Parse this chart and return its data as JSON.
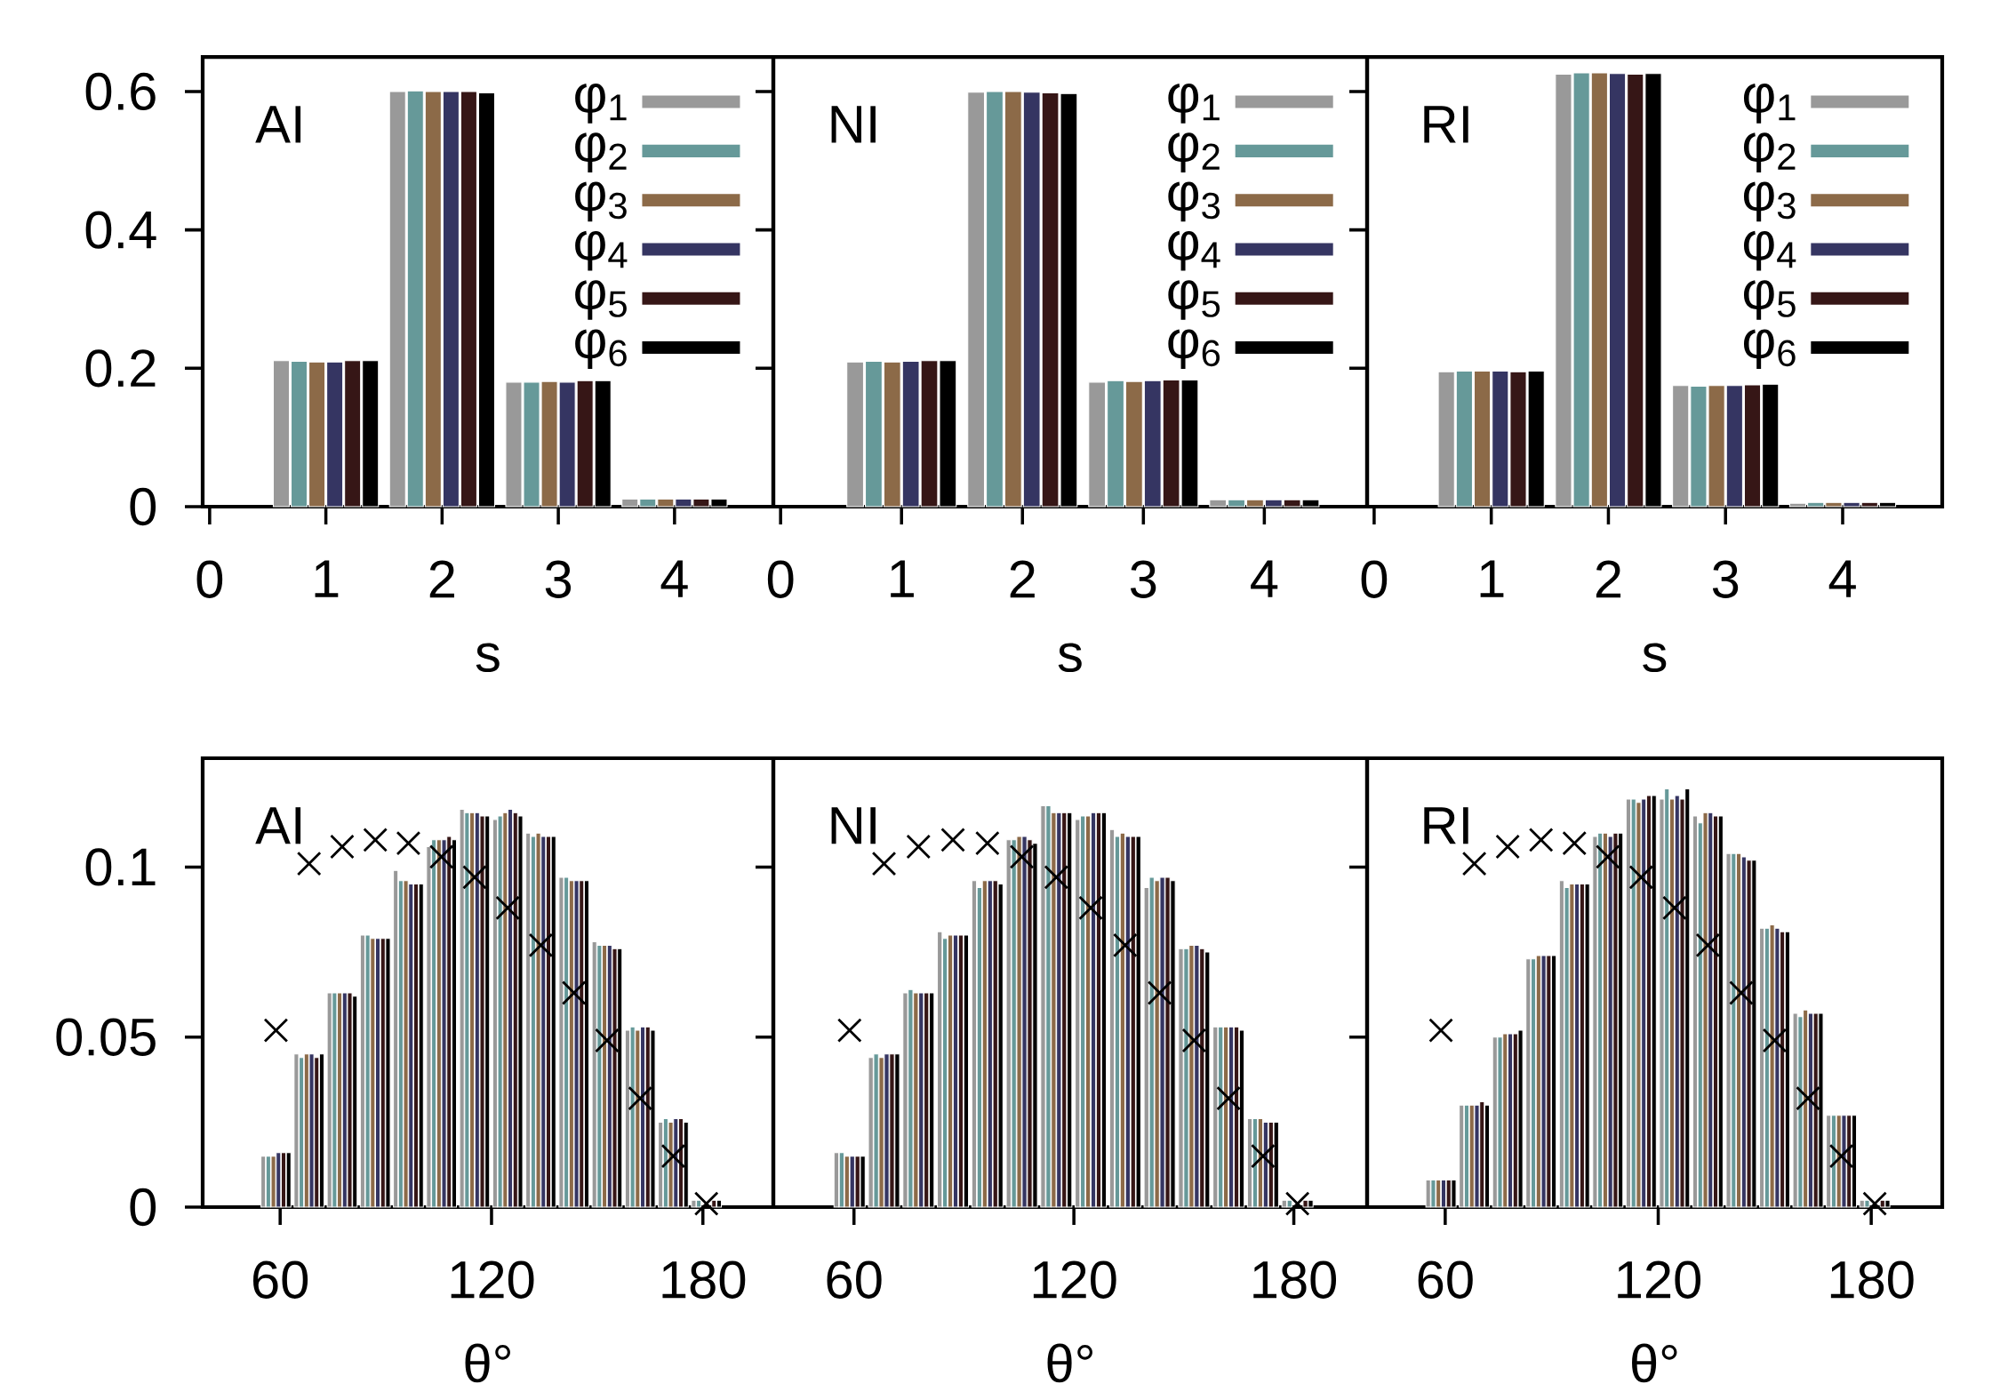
{
  "chart_data": [
    {
      "type": "bar",
      "x": [
        1,
        2,
        3,
        4
      ],
      "xlim": [
        -0.06,
        4.85
      ],
      "xticks": [
        0,
        1,
        2,
        3,
        4
      ],
      "ylim": [
        0,
        0.65
      ],
      "yticks": [
        0,
        0.2,
        0.4,
        0.6
      ],
      "xlabel": "s",
      "annotations": [
        "AI"
      ],
      "legend": "top right",
      "series": [
        {
          "name": "φ$_{1}$",
          "color": "#999999",
          "values": [
            0.211,
            0.6,
            0.18,
            0.011
          ]
        },
        {
          "name": "φ$_{2}$",
          "color": "#669999",
          "values": [
            0.21,
            0.601,
            0.18,
            0.011
          ]
        },
        {
          "name": "φ$_{3}$",
          "color": "#8c6a48",
          "values": [
            0.209,
            0.6,
            0.181,
            0.011
          ]
        },
        {
          "name": "φ$_{4}$",
          "color": "#353562",
          "values": [
            0.209,
            0.6,
            0.18,
            0.011
          ]
        },
        {
          "name": "φ$_{5}$",
          "color": "#361616",
          "values": [
            0.211,
            0.6,
            0.182,
            0.011
          ]
        },
        {
          "name": "φ$_{6}$",
          "color": "#000000",
          "values": [
            0.211,
            0.598,
            0.182,
            0.011
          ]
        }
      ]
    },
    {
      "type": "bar",
      "x": [
        1,
        2,
        3,
        4
      ],
      "xlim": [
        -0.06,
        4.85
      ],
      "xticks": [
        0,
        1,
        2,
        3,
        4
      ],
      "ylim": [
        0,
        0.65
      ],
      "yticks": [
        0,
        0.2,
        0.4,
        0.6
      ],
      "xlabel": "s",
      "annotations": [
        "NI"
      ],
      "legend": "top right",
      "tick_labels": "x",
      "series": [
        {
          "name": "φ$_{1}$",
          "color": "#999999",
          "values": [
            0.209,
            0.599,
            0.18,
            0.01
          ]
        },
        {
          "name": "φ$_{2}$",
          "color": "#669999",
          "values": [
            0.21,
            0.6,
            0.182,
            0.01
          ]
        },
        {
          "name": "φ$_{3}$",
          "color": "#8c6a48",
          "values": [
            0.209,
            0.6,
            0.181,
            0.01
          ]
        },
        {
          "name": "φ$_{4}$",
          "color": "#353562",
          "values": [
            0.21,
            0.599,
            0.182,
            0.01
          ]
        },
        {
          "name": "φ$_{5}$",
          "color": "#361616",
          "values": [
            0.211,
            0.598,
            0.183,
            0.01
          ]
        },
        {
          "name": "φ$_{6}$",
          "color": "#000000",
          "values": [
            0.211,
            0.597,
            0.183,
            0.01
          ]
        }
      ]
    },
    {
      "type": "bar",
      "x": [
        1,
        2,
        3,
        4
      ],
      "xlim": [
        -0.06,
        4.85
      ],
      "xticks": [
        0,
        1,
        2,
        3,
        4
      ],
      "ylim": [
        0,
        0.65
      ],
      "yticks": [
        0,
        0.2,
        0.4,
        0.6
      ],
      "xlabel": "s",
      "annotations": [
        "RI"
      ],
      "legend": "top right",
      "tick_labels": "x",
      "series": [
        {
          "name": "φ$_{1}$",
          "color": "#999999",
          "values": [
            0.195,
            0.625,
            0.175,
            0.005
          ]
        },
        {
          "name": "φ$_{2}$",
          "color": "#669999",
          "values": [
            0.196,
            0.627,
            0.174,
            0.006
          ]
        },
        {
          "name": "φ$_{3}$",
          "color": "#8c6a48",
          "values": [
            0.196,
            0.627,
            0.175,
            0.006
          ]
        },
        {
          "name": "φ$_{4}$",
          "color": "#353562",
          "values": [
            0.196,
            0.626,
            0.175,
            0.006
          ]
        },
        {
          "name": "φ$_{5}$",
          "color": "#361616",
          "values": [
            0.195,
            0.625,
            0.176,
            0.006
          ]
        },
        {
          "name": "φ$_{6}$",
          "color": "#000000",
          "values": [
            0.196,
            0.626,
            0.177,
            0.006
          ]
        }
      ]
    },
    {
      "type": "bar",
      "x": [
        58.8,
        68.2,
        77.6,
        87.0,
        96.4,
        105.8,
        115.2,
        124.6,
        134.0,
        143.4,
        152.8,
        162.2,
        171.6,
        181.0
      ],
      "xlim": [
        38,
        200
      ],
      "xticks": [
        60,
        120,
        180
      ],
      "ylim": [
        0,
        0.132
      ],
      "yticks": [
        0,
        0.05,
        0.1
      ],
      "xlabel": "θ°",
      "annotations": [
        "AI"
      ],
      "series": [
        {
          "color": "#999999",
          "values": [
            0.015,
            0.045,
            0.063,
            0.08,
            0.099,
            0.106,
            0.117,
            0.114,
            0.11,
            0.097,
            0.078,
            0.052,
            0.025,
            0.002
          ]
        },
        {
          "color": "#669999",
          "values": [
            0.015,
            0.044,
            0.063,
            0.08,
            0.096,
            0.108,
            0.116,
            0.115,
            0.109,
            0.097,
            0.077,
            0.053,
            0.026,
            0.002
          ]
        },
        {
          "color": "#8c6a48",
          "values": [
            0.015,
            0.045,
            0.063,
            0.079,
            0.096,
            0.108,
            0.116,
            0.116,
            0.11,
            0.096,
            0.077,
            0.052,
            0.025,
            null
          ]
        },
        {
          "color": "#353562",
          "values": [
            0.016,
            0.045,
            0.063,
            0.079,
            0.095,
            0.108,
            0.116,
            0.117,
            0.109,
            0.096,
            0.077,
            0.053,
            0.026,
            null
          ]
        },
        {
          "color": "#361616",
          "values": [
            0.016,
            0.044,
            0.063,
            0.079,
            0.095,
            0.109,
            0.115,
            0.116,
            0.109,
            0.096,
            0.076,
            0.053,
            0.026,
            0.002
          ]
        },
        {
          "color": "#000000",
          "values": [
            0.016,
            0.045,
            0.062,
            0.079,
            0.095,
            0.108,
            0.115,
            0.115,
            0.109,
            0.096,
            0.076,
            0.052,
            0.025,
            0.002
          ]
        },
        {
          "type": "scatter",
          "marker": "cross",
          "color": "#000000",
          "x": [
            58.8,
            68.2,
            77.6,
            87.0,
            96.4,
            105.8,
            115.2,
            124.6,
            134.0,
            143.4,
            152.8,
            162.2,
            171.6,
            181.0
          ],
          "values": [
            0.052,
            0.101,
            0.106,
            0.108,
            0.107,
            0.103,
            0.097,
            0.088,
            0.077,
            0.063,
            0.049,
            0.032,
            0.015,
            0.001
          ]
        }
      ]
    },
    {
      "type": "bar",
      "x": [
        58.8,
        68.2,
        77.6,
        87.0,
        96.4,
        105.8,
        115.2,
        124.6,
        134.0,
        143.4,
        152.8,
        162.2,
        171.6,
        181.0
      ],
      "xlim": [
        38,
        200
      ],
      "xticks": [
        60,
        120,
        180
      ],
      "ylim": [
        0,
        0.132
      ],
      "yticks": [
        0,
        0.05,
        0.1
      ],
      "xlabel": "θ°",
      "annotations": [
        "NI"
      ],
      "tick_labels": "x",
      "series": [
        {
          "color": "#999999",
          "values": [
            0.016,
            0.044,
            0.063,
            0.081,
            0.096,
            0.108,
            0.118,
            0.114,
            0.111,
            0.094,
            0.076,
            0.053,
            0.026,
            0.002
          ]
        },
        {
          "color": "#669999",
          "values": [
            0.016,
            0.045,
            0.064,
            0.079,
            0.094,
            0.108,
            0.118,
            0.115,
            0.109,
            0.097,
            0.076,
            0.053,
            0.026,
            0.002
          ]
        },
        {
          "color": "#8c6a48",
          "values": [
            0.015,
            0.044,
            0.063,
            0.08,
            0.096,
            0.109,
            0.116,
            0.115,
            0.11,
            0.096,
            0.077,
            0.053,
            0.026,
            null
          ]
        },
        {
          "color": "#353562",
          "values": [
            0.015,
            0.045,
            0.063,
            0.08,
            0.096,
            0.109,
            0.116,
            0.116,
            0.109,
            0.097,
            0.077,
            0.053,
            0.025,
            null
          ]
        },
        {
          "color": "#361616",
          "values": [
            0.015,
            0.045,
            0.063,
            0.08,
            0.096,
            0.108,
            0.116,
            0.116,
            0.109,
            0.097,
            0.076,
            0.053,
            0.025,
            0.002
          ]
        },
        {
          "color": "#000000",
          "values": [
            0.015,
            0.045,
            0.063,
            0.08,
            0.095,
            0.107,
            0.116,
            0.116,
            0.109,
            0.096,
            0.075,
            0.052,
            0.025,
            0.002
          ]
        },
        {
          "type": "scatter",
          "marker": "cross",
          "color": "#000000",
          "x": [
            58.8,
            68.2,
            77.6,
            87.0,
            96.4,
            105.8,
            115.2,
            124.6,
            134.0,
            143.4,
            152.8,
            162.2,
            171.6,
            181.0
          ],
          "values": [
            0.052,
            0.101,
            0.106,
            0.108,
            0.107,
            0.103,
            0.097,
            0.088,
            0.077,
            0.063,
            0.049,
            0.032,
            0.015,
            0.001
          ]
        }
      ]
    },
    {
      "type": "bar",
      "x": [
        58.8,
        68.2,
        77.6,
        87.0,
        96.4,
        105.8,
        115.2,
        124.6,
        134.0,
        143.4,
        152.8,
        162.2,
        171.6,
        181.0
      ],
      "xlim": [
        38,
        200
      ],
      "xticks": [
        60,
        120,
        180
      ],
      "ylim": [
        0,
        0.132
      ],
      "yticks": [
        0,
        0.05,
        0.1
      ],
      "xlabel": "θ°",
      "annotations": [
        "RI"
      ],
      "tick_labels": "x",
      "series": [
        {
          "color": "#999999",
          "values": [
            0.008,
            0.03,
            0.05,
            0.073,
            0.096,
            0.109,
            0.12,
            0.12,
            0.115,
            0.104,
            0.082,
            0.057,
            0.027,
            0.002
          ]
        },
        {
          "color": "#669999",
          "values": [
            0.008,
            0.03,
            0.05,
            0.073,
            0.094,
            0.11,
            0.12,
            0.123,
            0.113,
            0.104,
            0.082,
            0.056,
            0.027,
            0.002
          ]
        },
        {
          "color": "#8c6a48",
          "values": [
            0.008,
            0.03,
            0.051,
            0.074,
            0.095,
            0.11,
            0.119,
            0.12,
            0.116,
            0.104,
            0.083,
            0.058,
            0.027,
            null
          ]
        },
        {
          "color": "#353562",
          "values": [
            0.008,
            0.03,
            0.051,
            0.074,
            0.095,
            0.109,
            0.12,
            0.121,
            0.116,
            0.103,
            0.082,
            0.057,
            0.027,
            null
          ]
        },
        {
          "color": "#361616",
          "values": [
            0.008,
            0.031,
            0.051,
            0.074,
            0.095,
            0.11,
            0.121,
            0.12,
            0.115,
            0.102,
            0.081,
            0.057,
            0.027,
            0.002
          ]
        },
        {
          "color": "#000000",
          "values": [
            0.008,
            0.03,
            0.052,
            0.074,
            0.095,
            0.11,
            0.121,
            0.123,
            0.115,
            0.102,
            0.081,
            0.057,
            0.027,
            0.002
          ]
        },
        {
          "type": "scatter",
          "marker": "cross",
          "color": "#000000",
          "x": [
            58.8,
            68.2,
            77.6,
            87.0,
            96.4,
            105.8,
            115.2,
            124.6,
            134.0,
            143.4,
            152.8,
            162.2,
            171.6,
            181.0
          ],
          "values": [
            0.052,
            0.101,
            0.106,
            0.108,
            0.107,
            0.103,
            0.097,
            0.088,
            0.077,
            0.063,
            0.049,
            0.032,
            0.015,
            0.001
          ]
        }
      ]
    }
  ]
}
